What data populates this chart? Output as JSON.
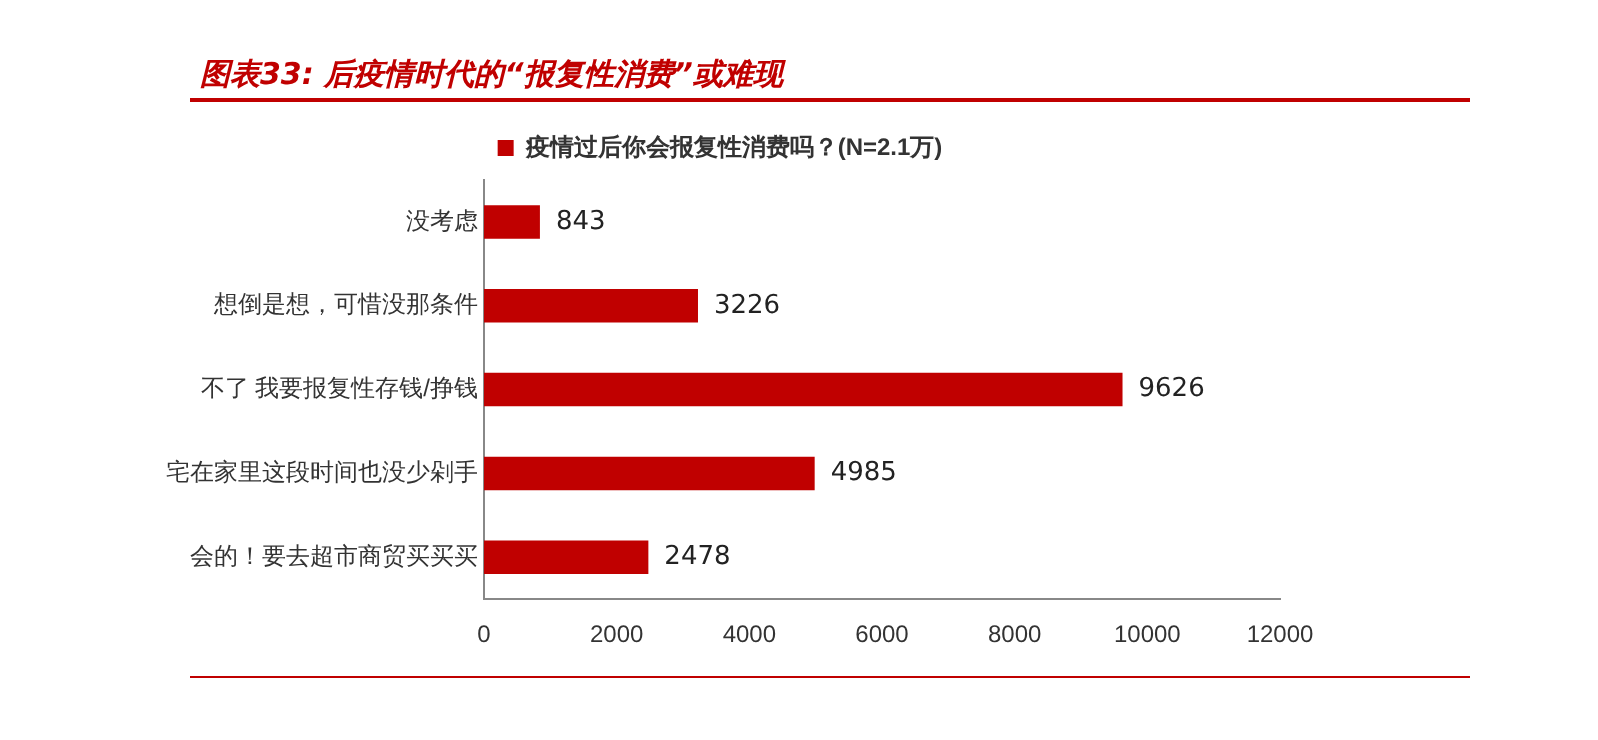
{
  "chart_data": {
    "type": "bar",
    "orientation": "horizontal",
    "title": "图表33: 后疫情时代的“报复性消费”或难现",
    "categories": [
      "没考虑",
      "想倒是想，可惜没那条件",
      "不了 我要报复性存钱/挣钱",
      "宅在家里这段时间也没少剁手",
      "会的！要去超市商贸买买买"
    ],
    "series": [
      {
        "name": "疫情过后你会报复性消费吗？(N=2.1万)",
        "color": "#c00000",
        "values": [
          843,
          3226,
          9626,
          4985,
          2478
        ]
      }
    ],
    "xlim": [
      0,
      12000
    ],
    "xticks": [
      0,
      2000,
      4000,
      6000,
      8000,
      10000,
      12000
    ],
    "grid": false,
    "legend": "top",
    "data_labels": true
  }
}
